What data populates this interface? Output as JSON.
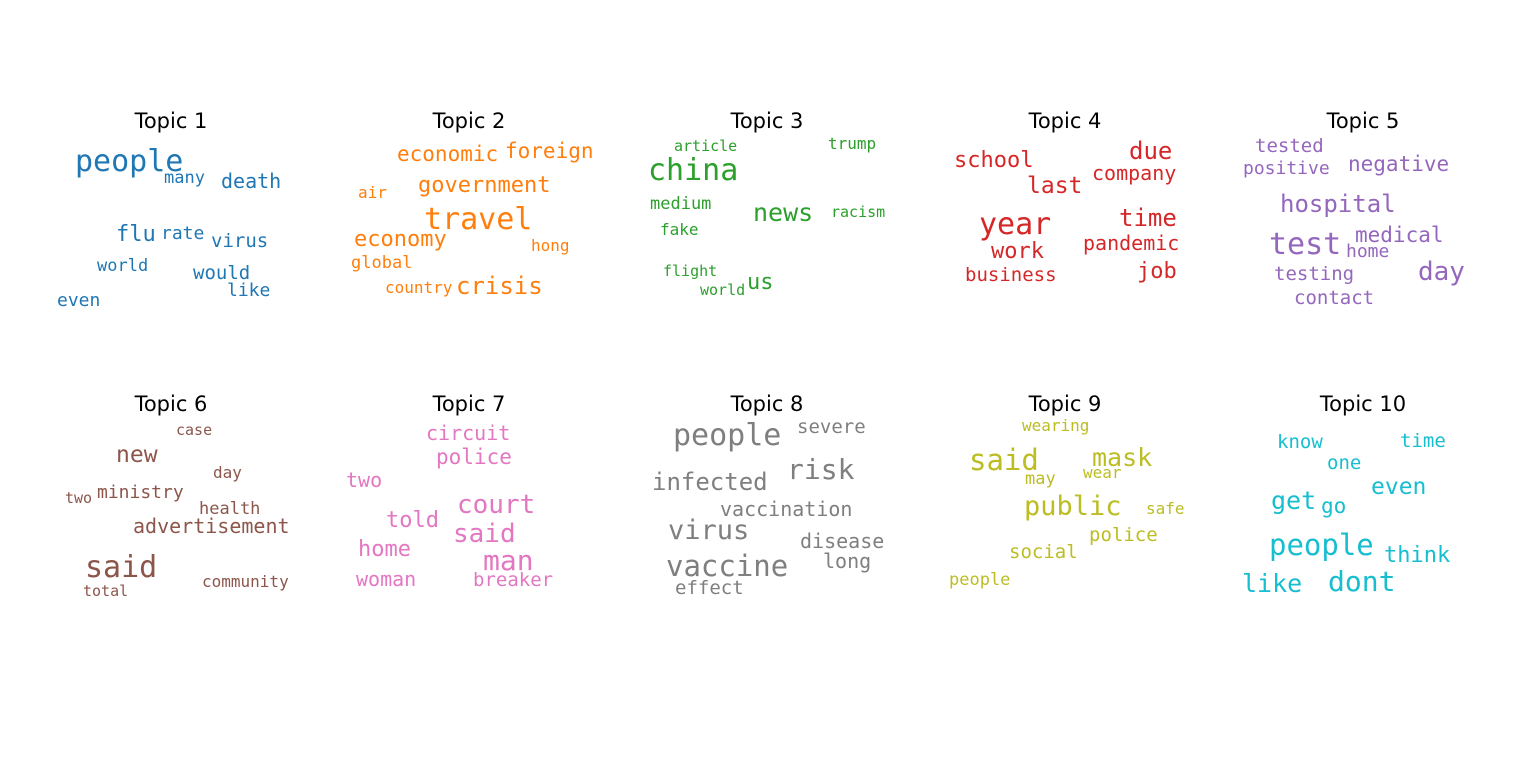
{
  "topics": [
    {
      "title": "Topic 1",
      "color": "#1f77b4",
      "words": [
        {
          "text": "people",
          "size": 30
        },
        {
          "text": "many",
          "size": 17
        },
        {
          "text": "death",
          "size": 20
        },
        {
          "text": "flu",
          "size": 22
        },
        {
          "text": "rate",
          "size": 18
        },
        {
          "text": "virus",
          "size": 19
        },
        {
          "text": "world",
          "size": 17
        },
        {
          "text": "would",
          "size": 19
        },
        {
          "text": "like",
          "size": 18
        },
        {
          "text": "even",
          "size": 18
        }
      ]
    },
    {
      "title": "Topic 2",
      "color": "#ff7f0e",
      "words": [
        {
          "text": "economic",
          "size": 21
        },
        {
          "text": "foreign",
          "size": 21
        },
        {
          "text": "government",
          "size": 22
        },
        {
          "text": "air",
          "size": 16
        },
        {
          "text": "travel",
          "size": 30
        },
        {
          "text": "economy",
          "size": 22
        },
        {
          "text": "hong",
          "size": 16
        },
        {
          "text": "global",
          "size": 17
        },
        {
          "text": "country",
          "size": 16
        },
        {
          "text": "crisis",
          "size": 24
        }
      ]
    },
    {
      "title": "Topic 3",
      "color": "#2ca02c",
      "words": [
        {
          "text": "article",
          "size": 15
        },
        {
          "text": "trump",
          "size": 16
        },
        {
          "text": "china",
          "size": 30
        },
        {
          "text": "medium",
          "size": 17
        },
        {
          "text": "news",
          "size": 25
        },
        {
          "text": "racism",
          "size": 15
        },
        {
          "text": "fake",
          "size": 16
        },
        {
          "text": "flight",
          "size": 15
        },
        {
          "text": "world",
          "size": 15
        },
        {
          "text": "us",
          "size": 22
        }
      ]
    },
    {
      "title": "Topic 4",
      "color": "#d62728",
      "words": [
        {
          "text": "school",
          "size": 22
        },
        {
          "text": "due",
          "size": 24
        },
        {
          "text": "company",
          "size": 20
        },
        {
          "text": "last",
          "size": 23
        },
        {
          "text": "year",
          "size": 30
        },
        {
          "text": "time",
          "size": 24
        },
        {
          "text": "work",
          "size": 22
        },
        {
          "text": "pandemic",
          "size": 20
        },
        {
          "text": "business",
          "size": 19
        },
        {
          "text": "job",
          "size": 22
        }
      ]
    },
    {
      "title": "Topic 5",
      "color": "#9467bd",
      "words": [
        {
          "text": "tested",
          "size": 19
        },
        {
          "text": "positive",
          "size": 18
        },
        {
          "text": "negative",
          "size": 21
        },
        {
          "text": "hospital",
          "size": 24
        },
        {
          "text": "medical",
          "size": 21
        },
        {
          "text": "test",
          "size": 30
        },
        {
          "text": "home",
          "size": 18
        },
        {
          "text": "testing",
          "size": 19
        },
        {
          "text": "day",
          "size": 26
        },
        {
          "text": "contact",
          "size": 19
        }
      ]
    },
    {
      "title": "Topic 6",
      "color": "#8c564b",
      "words": [
        {
          "text": "case",
          "size": 15
        },
        {
          "text": "new",
          "size": 23
        },
        {
          "text": "day",
          "size": 16
        },
        {
          "text": "two",
          "size": 15
        },
        {
          "text": "ministry",
          "size": 18
        },
        {
          "text": "health",
          "size": 17
        },
        {
          "text": "advertisement",
          "size": 20
        },
        {
          "text": "said",
          "size": 30
        },
        {
          "text": "total",
          "size": 15
        },
        {
          "text": "community",
          "size": 16
        }
      ]
    },
    {
      "title": "Topic 7",
      "color": "#e377c2",
      "words": [
        {
          "text": "circuit",
          "size": 20
        },
        {
          "text": "police",
          "size": 21
        },
        {
          "text": "two",
          "size": 20
        },
        {
          "text": "told",
          "size": 22
        },
        {
          "text": "court",
          "size": 26
        },
        {
          "text": "said",
          "size": 26
        },
        {
          "text": "home",
          "size": 22
        },
        {
          "text": "man",
          "size": 28
        },
        {
          "text": "woman",
          "size": 20
        },
        {
          "text": "breaker",
          "size": 19
        }
      ]
    },
    {
      "title": "Topic 8",
      "color": "#7f7f7f",
      "words": [
        {
          "text": "people",
          "size": 30
        },
        {
          "text": "severe",
          "size": 19
        },
        {
          "text": "risk",
          "size": 28
        },
        {
          "text": "infected",
          "size": 24
        },
        {
          "text": "vaccination",
          "size": 20
        },
        {
          "text": "virus",
          "size": 27
        },
        {
          "text": "disease",
          "size": 20
        },
        {
          "text": "long",
          "size": 20
        },
        {
          "text": "vaccine",
          "size": 29
        },
        {
          "text": "effect",
          "size": 19
        }
      ]
    },
    {
      "title": "Topic 9",
      "color": "#bcbd22",
      "words": [
        {
          "text": "wearing",
          "size": 16
        },
        {
          "text": "said",
          "size": 29
        },
        {
          "text": "mask",
          "size": 25
        },
        {
          "text": "may",
          "size": 17
        },
        {
          "text": "wear",
          "size": 16
        },
        {
          "text": "public",
          "size": 27
        },
        {
          "text": "safe",
          "size": 16
        },
        {
          "text": "police",
          "size": 19
        },
        {
          "text": "social",
          "size": 19
        },
        {
          "text": "people",
          "size": 17
        }
      ]
    },
    {
      "title": "Topic 10",
      "color": "#17becf",
      "words": [
        {
          "text": "know",
          "size": 19
        },
        {
          "text": "time",
          "size": 19
        },
        {
          "text": "one",
          "size": 19
        },
        {
          "text": "even",
          "size": 23
        },
        {
          "text": "get",
          "size": 25
        },
        {
          "text": "go",
          "size": 21
        },
        {
          "text": "people",
          "size": 29
        },
        {
          "text": "think",
          "size": 22
        },
        {
          "text": "like",
          "size": 25
        },
        {
          "text": "dont",
          "size": 28
        }
      ]
    }
  ]
}
